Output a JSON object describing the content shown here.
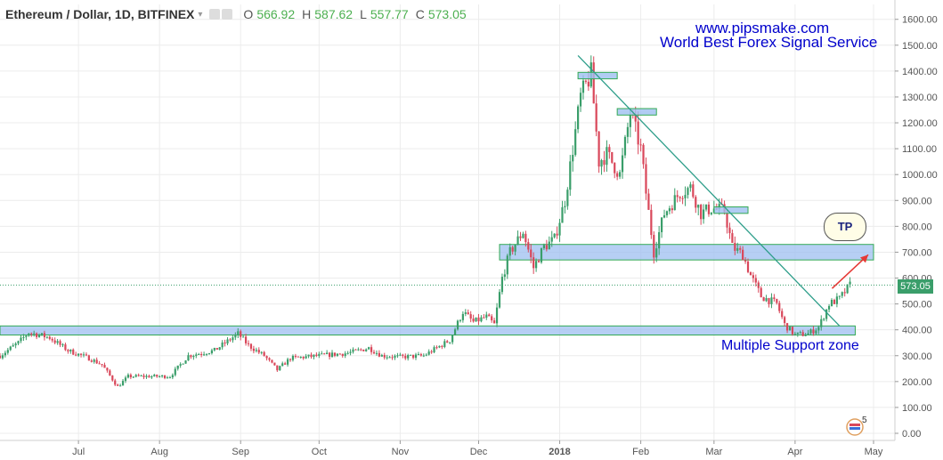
{
  "header": {
    "symbol": "Ethereum / Dollar, 1D, BITFINEX",
    "open_label": "O",
    "open": "566.92",
    "high_label": "H",
    "high": "587.62",
    "low_label": "L",
    "low": "557.77",
    "close_label": "C",
    "close": "573.05"
  },
  "annotations": {
    "website": "www.pipsmake.com",
    "slogan": "World Best Forex Signal Service",
    "support_zone": "Multiple Support zone",
    "target": "TP",
    "badge_number": "5"
  },
  "colors": {
    "up_candle": "#3a9e6a",
    "down_candle": "#d9475a",
    "zone_fill": "#9ebff0",
    "zone_border": "#33aa55",
    "trendline": "#2e9e8a",
    "text_annotation": "#0000cc",
    "arrow": "#e53935"
  },
  "chart_data": {
    "type": "candlestick",
    "title": "Ethereum / Dollar, 1D, BITFINEX",
    "x_ticks": [
      "Jul",
      "Aug",
      "Sep",
      "Oct",
      "Nov",
      "Dec",
      "2018",
      "Feb",
      "Mar",
      "Apr",
      "May"
    ],
    "y_ticks": [
      "1600.00",
      "1500.00",
      "1400.00",
      "1300.00",
      "1200.00",
      "1100.00",
      "1000.00",
      "900.00",
      "800.00",
      "700.00",
      "600.00",
      "500.00",
      "400.00",
      "300.00",
      "200.00",
      "100.00",
      "0.00"
    ],
    "ylim": [
      0,
      1650
    ],
    "last_price": "573.05",
    "price_path": [
      [
        "2017-06-01",
        300
      ],
      [
        "2017-06-08",
        350
      ],
      [
        "2017-06-12",
        390
      ],
      [
        "2017-06-20",
        370
      ],
      [
        "2017-06-27",
        320
      ],
      [
        "2017-07-05",
        290
      ],
      [
        "2017-07-10",
        265
      ],
      [
        "2017-07-16",
        180
      ],
      [
        "2017-07-20",
        220
      ],
      [
        "2017-07-28",
        220
      ],
      [
        "2017-08-05",
        220
      ],
      [
        "2017-08-12",
        300
      ],
      [
        "2017-08-22",
        320
      ],
      [
        "2017-08-31",
        385
      ],
      [
        "2017-09-04",
        340
      ],
      [
        "2017-09-10",
        300
      ],
      [
        "2017-09-15",
        245
      ],
      [
        "2017-09-20",
        290
      ],
      [
        "2017-10-01",
        300
      ],
      [
        "2017-10-12",
        310
      ],
      [
        "2017-10-20",
        330
      ],
      [
        "2017-10-25",
        300
      ],
      [
        "2017-11-01",
        295
      ],
      [
        "2017-11-10",
        300
      ],
      [
        "2017-11-20",
        360
      ],
      [
        "2017-11-25",
        470
      ],
      [
        "2017-11-29",
        430
      ],
      [
        "2017-12-04",
        450
      ],
      [
        "2017-12-07",
        420
      ],
      [
        "2017-12-10",
        600
      ],
      [
        "2017-12-13",
        700
      ],
      [
        "2017-12-18",
        780
      ],
      [
        "2017-12-22",
        640
      ],
      [
        "2017-12-26",
        720
      ],
      [
        "2017-12-30",
        750
      ],
      [
        "2018-01-03",
        900
      ],
      [
        "2018-01-06",
        1100
      ],
      [
        "2018-01-09",
        1300
      ],
      [
        "2018-01-13",
        1390
      ],
      [
        "2018-01-16",
        1050
      ],
      [
        "2018-01-19",
        1080
      ],
      [
        "2018-01-24",
        1000
      ],
      [
        "2018-01-28",
        1240
      ],
      [
        "2018-02-01",
        1100
      ],
      [
        "2018-02-03",
        930
      ],
      [
        "2018-02-06",
        700
      ],
      [
        "2018-02-10",
        850
      ],
      [
        "2018-02-16",
        930
      ],
      [
        "2018-02-20",
        950
      ],
      [
        "2018-02-24",
        850
      ],
      [
        "2018-02-28",
        870
      ],
      [
        "2018-03-05",
        860
      ],
      [
        "2018-03-08",
        720
      ],
      [
        "2018-03-12",
        690
      ],
      [
        "2018-03-15",
        610
      ],
      [
        "2018-03-19",
        530
      ],
      [
        "2018-03-25",
        500
      ],
      [
        "2018-03-28",
        420
      ],
      [
        "2018-04-01",
        380
      ],
      [
        "2018-04-06",
        385
      ],
      [
        "2018-04-10",
        410
      ],
      [
        "2018-04-14",
        500
      ],
      [
        "2018-04-18",
        520
      ],
      [
        "2018-04-22",
        573
      ]
    ],
    "resistance_boxes": [
      {
        "from": "2018-01-08",
        "to": "2018-01-23",
        "low": 1370,
        "high": 1395
      },
      {
        "from": "2018-01-23",
        "to": "2018-02-07",
        "low": 1230,
        "high": 1255
      },
      {
        "from": "2018-03-01",
        "to": "2018-03-14",
        "low": 850,
        "high": 875
      }
    ],
    "zones": [
      {
        "from": "2017-12-09",
        "to": "2018-05-01",
        "low": 670,
        "high": 730
      },
      {
        "from": "2017-06-01",
        "to": "2018-04-24",
        "low": 380,
        "high": 415
      }
    ],
    "trendline": [
      [
        "2018-01-08",
        1460
      ],
      [
        "2018-04-18",
        415
      ]
    ],
    "target_arrow": [
      [
        "2018-04-24",
        560
      ],
      [
        "2018-05-01",
        690
      ]
    ]
  }
}
